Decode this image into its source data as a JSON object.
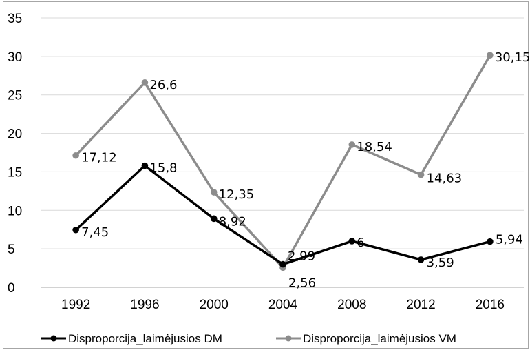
{
  "chart_data": {
    "type": "line",
    "title": "",
    "xlabel": "",
    "ylabel": "",
    "categories": [
      "1992",
      "1996",
      "2000",
      "2004",
      "2008",
      "2012",
      "2016"
    ],
    "ylim": [
      0,
      35
    ],
    "yticks": [
      0,
      5,
      10,
      15,
      20,
      25,
      30,
      35
    ],
    "grid": true,
    "legend_position": "bottom",
    "series": [
      {
        "name": "Disproporcija_laimėjusios DM",
        "color": "#000000",
        "values": [
          7.45,
          15.8,
          8.92,
          2.99,
          6,
          3.59,
          5.94
        ],
        "labels": [
          "7,45",
          "15,8",
          "8,92",
          "2,99",
          "6",
          "3,59",
          "5,94"
        ]
      },
      {
        "name": "Disproporcija_laimėjusios VM",
        "color": "#8c8c8c",
        "values": [
          17.12,
          26.6,
          12.35,
          2.56,
          18.54,
          14.63,
          30.15
        ],
        "labels": [
          "17,12",
          "26,6",
          "12,35",
          "2,56",
          "18,54",
          "14,63",
          "30,15"
        ]
      }
    ]
  }
}
